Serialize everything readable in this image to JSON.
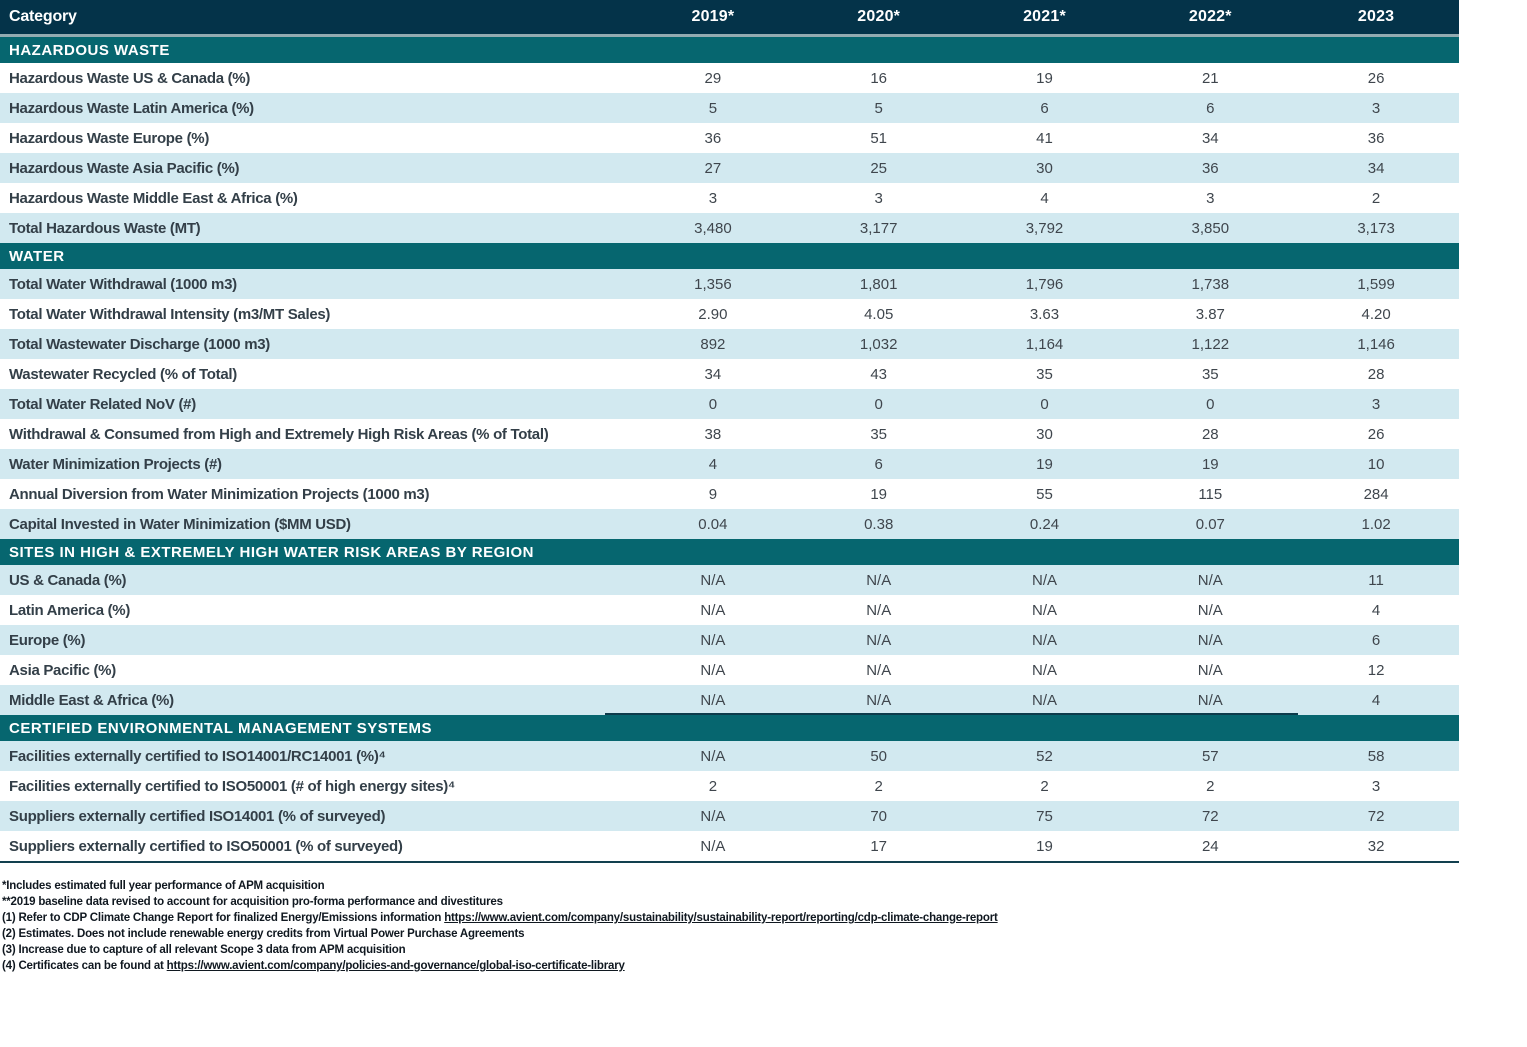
{
  "header": {
    "category_label": "Category",
    "years": [
      "2019*",
      "2020*",
      "2021*",
      "2022*",
      "2023"
    ]
  },
  "sections": [
    {
      "title": "HAZARDOUS WASTE",
      "rows": [
        {
          "label": "Hazardous Waste US & Canada (%)",
          "values": [
            "29",
            "16",
            "19",
            "21",
            "26"
          ]
        },
        {
          "label": "Hazardous Waste Latin America (%)",
          "values": [
            "5",
            "5",
            "6",
            "6",
            "3"
          ]
        },
        {
          "label": "Hazardous Waste Europe (%)",
          "values": [
            "36",
            "51",
            "41",
            "34",
            "36"
          ]
        },
        {
          "label": "Hazardous Waste Asia Pacific (%)",
          "values": [
            "27",
            "25",
            "30",
            "36",
            "34"
          ]
        },
        {
          "label": "Hazardous Waste Middle East & Africa (%)",
          "values": [
            "3",
            "3",
            "4",
            "3",
            "2"
          ]
        },
        {
          "label": "Total Hazardous Waste (MT)",
          "values": [
            "3,480",
            "3,177",
            "3,792",
            "3,850",
            "3,173"
          ]
        }
      ]
    },
    {
      "title": "WATER",
      "rows": [
        {
          "label": "Total Water Withdrawal (1000 m3)",
          "values": [
            "1,356",
            "1,801",
            "1,796",
            "1,738",
            "1,599"
          ]
        },
        {
          "label": "Total Water Withdrawal Intensity (m3/MT Sales)",
          "values": [
            "2.90",
            "4.05",
            "3.63",
            "3.87",
            "4.20"
          ]
        },
        {
          "label": "Total Wastewater Discharge (1000 m3)",
          "values": [
            "892",
            "1,032",
            "1,164",
            "1,122",
            "1,146"
          ]
        },
        {
          "label": "Wastewater Recycled (% of Total)",
          "values": [
            "34",
            "43",
            "35",
            "35",
            "28"
          ]
        },
        {
          "label": "Total Water Related NoV (#)",
          "values": [
            "0",
            "0",
            "0",
            "0",
            "3"
          ]
        },
        {
          "label": "Withdrawal & Consumed from High and Extremely High Risk Areas (% of Total)",
          "values": [
            "38",
            "35",
            "30",
            "28",
            "26"
          ]
        },
        {
          "label": "Water Minimization Projects (#)",
          "values": [
            "4",
            "6",
            "19",
            "19",
            "10"
          ]
        },
        {
          "label": "Annual Diversion from Water Minimization Projects (1000 m3)",
          "values": [
            "9",
            "19",
            "55",
            "115",
            "284"
          ]
        },
        {
          "label": "Capital Invested in Water Minimization ($MM USD)",
          "values": [
            "0.04",
            "0.38",
            "0.24",
            "0.07",
            "1.02"
          ]
        }
      ]
    },
    {
      "title": "SITES IN HIGH & EXTREMELY HIGH WATER RISK AREAS BY REGION",
      "rows": [
        {
          "label": "US & Canada (%)",
          "values": [
            "N/A",
            "N/A",
            "N/A",
            "N/A",
            "11"
          ]
        },
        {
          "label": "Latin America (%)",
          "values": [
            "N/A",
            "N/A",
            "N/A",
            "N/A",
            "4"
          ]
        },
        {
          "label": "Europe (%)",
          "values": [
            "N/A",
            "N/A",
            "N/A",
            "N/A",
            "6"
          ]
        },
        {
          "label": "Asia Pacific (%)",
          "values": [
            "N/A",
            "N/A",
            "N/A",
            "N/A",
            "12"
          ]
        },
        {
          "label": "Middle East & Africa (%)",
          "values": [
            "N/A",
            "N/A",
            "N/A",
            "N/A",
            "4"
          ]
        }
      ]
    },
    {
      "title": "CERTIFIED ENVIRONMENTAL MANAGEMENT SYSTEMS",
      "rows": [
        {
          "label": "Facilities externally certified to ISO14001/RC14001 (%)⁴",
          "values": [
            "N/A",
            "50",
            "52",
            "57",
            "58"
          ]
        },
        {
          "label": "Facilities externally certified to ISO50001 (# of high energy sites)⁴",
          "values": [
            "2",
            "2",
            "2",
            "2",
            "3"
          ]
        },
        {
          "label": "Suppliers externally certified ISO14001 (% of surveyed)",
          "values": [
            "N/A",
            "70",
            "75",
            "72",
            "72"
          ]
        },
        {
          "label": "Suppliers externally certified to ISO50001 (% of surveyed)",
          "values": [
            "N/A",
            "17",
            "19",
            "24",
            "32"
          ]
        }
      ]
    }
  ],
  "footnotes": [
    {
      "text": "*Includes estimated full year performance of APM acquisition",
      "link": ""
    },
    {
      "text": "**2019 baseline data revised to account for acquisition pro-forma performance and divestitures",
      "link": ""
    },
    {
      "text": "(1) Refer to CDP Climate Change Report for finalized Energy/Emissions information ",
      "link": "https://www.avient.com/company/sustainability/sustainability-report/reporting/cdp-climate-change-report"
    },
    {
      "text": "(2) Estimates. Does not include renewable energy credits from Virtual Power Purchase Agreements",
      "link": ""
    },
    {
      "text": "(3) Increase due to capture of all relevant Scope 3 data from APM acquisition",
      "link": ""
    },
    {
      "text": "(4) Certificates can be found at ",
      "link": "https://www.avient.com/company/policies-and-governance/global-iso-certificate-library"
    }
  ],
  "colors": {
    "header_bg": "#043349",
    "section_bg": "#06666f",
    "shaded_row_bg": "#d2e9f0",
    "header_separator": "#93abb1",
    "label_text": "#333f48",
    "value_text": "#3f464d",
    "rule": "#12404f",
    "footnote_text": "#101820"
  }
}
